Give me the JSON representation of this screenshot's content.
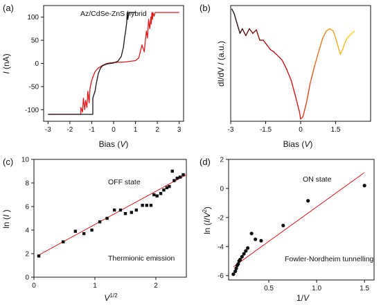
{
  "chart_data": [
    {
      "id": "a",
      "type": "line",
      "panel_label": "(a)",
      "annotation": "Az/CdSe-ZnS  hybrid",
      "xlabel_prefix": "Bias (",
      "xlabel_var": "V",
      "xlabel_suffix": ")",
      "ylabel_var": "I",
      "ylabel_suffix": " (nA)",
      "xlim": [
        -3.2,
        3.2
      ],
      "ylim": [
        -125,
        125
      ],
      "xticks": [
        -3,
        -2,
        -1,
        0,
        1,
        2,
        3
      ],
      "yticks": [
        -100,
        -50,
        0,
        50,
        100
      ],
      "series": [
        {
          "color": "#e01818",
          "x": [
            -3.0,
            -1.5,
            -1.5,
            -1.42,
            -1.38,
            -1.32,
            -1.28,
            -1.22,
            -1.18,
            -1.12,
            -1.08,
            -1.02,
            -0.95,
            -0.85,
            -0.7,
            -0.5,
            -0.3,
            0.0,
            0.5,
            1.0,
            1.15,
            1.3,
            1.4,
            1.5,
            1.55,
            1.6,
            1.65,
            1.7,
            1.72,
            1.75,
            1.78,
            1.8,
            1.85,
            1.9,
            2.0,
            3.0
          ],
          "y": [
            -110,
            -110,
            -95,
            -105,
            -75,
            -100,
            -80,
            -95,
            -60,
            -85,
            -55,
            -40,
            -30,
            -18,
            -10,
            -4,
            0,
            2,
            3,
            6,
            12,
            40,
            25,
            70,
            55,
            95,
            75,
            100,
            85,
            110,
            95,
            110,
            102,
            110,
            110,
            110
          ]
        },
        {
          "color": "#151515",
          "x": [
            -3.0,
            -0.95,
            -0.95,
            -0.85,
            -0.8,
            -0.7,
            -0.6,
            -0.5,
            -0.3,
            0.0,
            0.2,
            0.35,
            0.45,
            0.5,
            0.55,
            0.6,
            0.62,
            0.65,
            0.7,
            0.75,
            1.0
          ],
          "y": [
            -110,
            -110,
            -75,
            -60,
            -45,
            -22,
            -10,
            -5,
            -1,
            1,
            5,
            15,
            35,
            55,
            70,
            88,
            110,
            95,
            110,
            110,
            110
          ]
        }
      ]
    },
    {
      "id": "b",
      "type": "line",
      "panel_label": "(b)",
      "xlabel_prefix": "Bias (",
      "xlabel_var": "V",
      "xlabel_suffix": ")",
      "ylabel": "dI/dV / (a.u.)",
      "xlim": [
        -3.0,
        3.0
      ],
      "ylim": [
        0,
        1
      ],
      "xticks": [
        -3,
        -1.5,
        0,
        1.5
      ],
      "xticklabels": [
        "-3",
        "-1.5",
        "0",
        "1.5"
      ],
      "ytick_labels_shown": false,
      "series": [
        {
          "gradient": [
            "#151515",
            "#a01010",
            "#e01818",
            "#f2a020",
            "#f5d020"
          ],
          "x": [
            -2.95,
            -2.85,
            -2.75,
            -2.6,
            -2.5,
            -2.35,
            -2.2,
            -2.05,
            -1.9,
            -1.75,
            -1.6,
            -1.45,
            -1.3,
            -1.15,
            -1.0,
            -0.8,
            -0.6,
            -0.4,
            -0.2,
            -0.05,
            0.0,
            0.1,
            0.25,
            0.4,
            0.6,
            0.8,
            0.95,
            1.1,
            1.25,
            1.4,
            1.5,
            1.6,
            1.7,
            1.8,
            1.9,
            2.0,
            2.1,
            2.2,
            2.3
          ],
          "y": [
            0.97,
            0.93,
            0.86,
            0.76,
            0.8,
            0.74,
            0.8,
            0.76,
            0.79,
            0.7,
            0.7,
            0.66,
            0.62,
            0.6,
            0.57,
            0.53,
            0.45,
            0.35,
            0.2,
            0.08,
            0.02,
            0.04,
            0.16,
            0.32,
            0.48,
            0.62,
            0.72,
            0.78,
            0.8,
            0.78,
            0.72,
            0.65,
            0.58,
            0.62,
            0.68,
            0.72,
            0.74,
            0.76,
            0.78
          ]
        }
      ]
    },
    {
      "id": "c",
      "type": "scatter",
      "panel_label": "(c)",
      "annotation_top": "OFF state",
      "annotation_bottom": "Thermionic emission",
      "xlabel_base": "V",
      "xlabel_sup": "1/2",
      "ylabel_prefix": "ln (",
      "ylabel_var": "I",
      "ylabel_suffix": " )",
      "xlim": [
        0,
        2.5
      ],
      "ylim": [
        0,
        10
      ],
      "xticks": [
        0,
        1,
        2
      ],
      "yticks": [
        0,
        2,
        4,
        6,
        8,
        10
      ],
      "points_x": [
        0.08,
        0.48,
        0.68,
        0.82,
        0.95,
        1.08,
        1.2,
        1.32,
        1.42,
        1.5,
        1.6,
        1.68,
        1.78,
        1.85,
        1.92,
        1.97,
        2.02,
        2.08,
        2.13,
        2.18,
        2.22,
        2.27,
        2.3,
        2.35,
        2.4,
        2.45
      ],
      "points_y": [
        1.8,
        3.0,
        3.9,
        3.7,
        4.0,
        4.7,
        5.0,
        5.7,
        5.7,
        5.4,
        5.5,
        5.7,
        6.1,
        6.1,
        6.1,
        7.0,
        6.9,
        7.1,
        7.4,
        7.6,
        7.7,
        9.0,
        8.2,
        8.4,
        8.5,
        8.7
      ],
      "fit": {
        "color": "#e01818",
        "x": [
          0.05,
          2.5
        ],
        "y": [
          1.8,
          8.7
        ]
      }
    },
    {
      "id": "d",
      "type": "scatter",
      "panel_label": "(d)",
      "annotation_top": "ON state",
      "annotation_bottom": "Fowler-Nordheim tunnelling",
      "xlabel_num": "1/",
      "xlabel_var": "V",
      "ylabel_prefix": "ln (",
      "ylabel_var1": "I",
      "ylabel_slash": "/",
      "ylabel_var2": "V",
      "ylabel_sup": "2",
      "ylabel_suffix": ")",
      "xlim": [
        0.08,
        1.6
      ],
      "ylim": [
        -6.3,
        2
      ],
      "xticks": [
        0.5,
        1.0,
        1.5
      ],
      "xticklabels": [
        "0.5",
        "1.0",
        "1.5"
      ],
      "yticks": [
        -6,
        -4,
        -2,
        0,
        2
      ],
      "points_x": [
        0.13,
        0.15,
        0.16,
        0.17,
        0.18,
        0.19,
        0.2,
        0.22,
        0.24,
        0.26,
        0.28,
        0.32,
        0.36,
        0.42,
        0.65,
        0.91,
        1.5
      ],
      "points_y": [
        -5.9,
        -5.7,
        -5.5,
        -5.3,
        -5.2,
        -5.0,
        -4.9,
        -4.7,
        -4.5,
        -4.3,
        -4.1,
        -3.1,
        -3.5,
        -3.6,
        -2.55,
        -0.85,
        0.2
      ],
      "fit": {
        "color": "#e01818",
        "x": [
          0.13,
          1.5
        ],
        "y": [
          -5.4,
          1.1
        ]
      }
    }
  ]
}
